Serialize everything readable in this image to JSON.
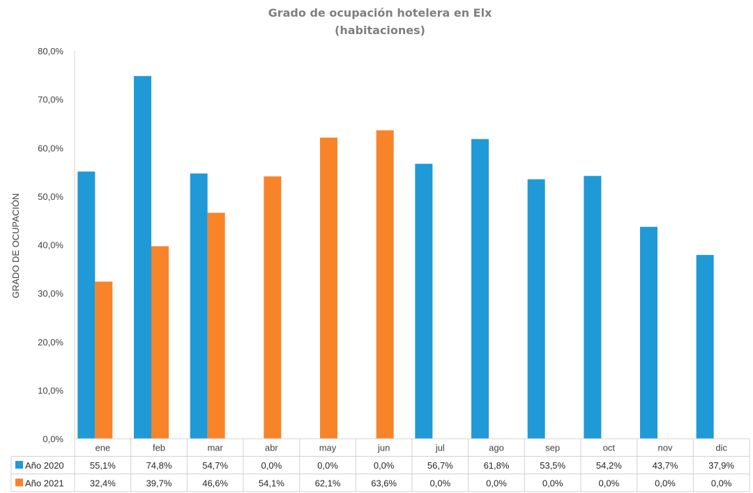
{
  "chart_data": {
    "type": "bar",
    "title_lines": [
      "Grado de ocupación hotelera en Elx",
      "(habitaciones)"
    ],
    "ylabel": "GRADO DE OCUPACIÓN",
    "ylim": [
      0,
      80
    ],
    "yticks": [
      0,
      10,
      20,
      30,
      40,
      50,
      60,
      70,
      80
    ],
    "ytick_labels": [
      "0,0%",
      "10,0%",
      "20,0%",
      "30,0%",
      "40,0%",
      "50,0%",
      "60,0%",
      "70,0%",
      "80,0%"
    ],
    "categories": [
      "ene",
      "feb",
      "mar",
      "abr",
      "may",
      "jun",
      "jul",
      "ago",
      "sep",
      "oct",
      "nov",
      "dic"
    ],
    "series": [
      {
        "name": "Año 2020",
        "color": "#1f9ad6",
        "values": [
          55.1,
          74.8,
          54.7,
          0.0,
          0.0,
          0.0,
          56.7,
          61.8,
          53.5,
          54.2,
          43.7,
          37.9
        ],
        "labels": [
          "55,1%",
          "74,8%",
          "54,7%",
          "0,0%",
          "0,0%",
          "0,0%",
          "56,7%",
          "61,8%",
          "53,5%",
          "54,2%",
          "43,7%",
          "37,9%"
        ]
      },
      {
        "name": "Año 2021",
        "color": "#f8842a",
        "values": [
          32.4,
          39.7,
          46.6,
          54.1,
          62.1,
          63.6,
          0.0,
          0.0,
          0.0,
          0.0,
          0.0,
          0.0
        ],
        "labels": [
          "32,4%",
          "39,7%",
          "46,6%",
          "54,1%",
          "62,1%",
          "63,6%",
          "0,0%",
          "0,0%",
          "0,0%",
          "0,0%",
          "0,0%",
          "0,0%"
        ]
      }
    ],
    "data_table": true,
    "grid": false
  }
}
